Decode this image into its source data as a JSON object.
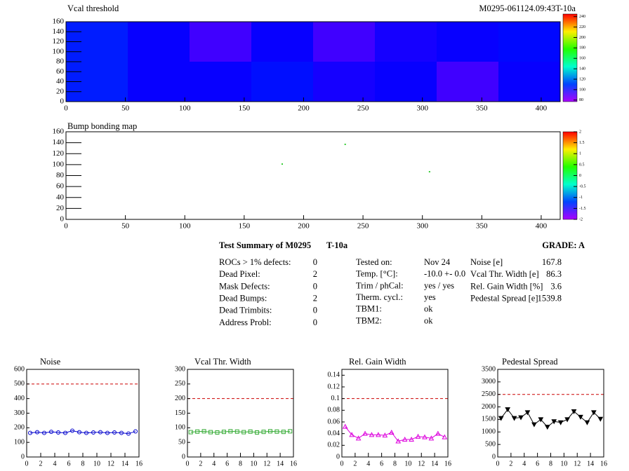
{
  "header": {
    "id": "M0295-061124.09:43T-10a"
  },
  "chart_data": [
    {
      "type": "heatmap",
      "title": "Vcal threshold",
      "xlim": [
        0,
        416
      ],
      "ylim": [
        0,
        160
      ],
      "xticks": [
        0,
        50,
        100,
        150,
        200,
        250,
        300,
        350,
        400
      ],
      "yticks": [
        0,
        20,
        40,
        60,
        80,
        100,
        120,
        140,
        160
      ],
      "z": [
        [
          105,
          100,
          100,
          103,
          98,
          100,
          92,
          100
        ],
        [
          105,
          100,
          92,
          100,
          92,
          98,
          100,
          102
        ]
      ],
      "zlim": [
        77,
        245
      ],
      "zticks": [
        80,
        100,
        120,
        140,
        160,
        180,
        200,
        220,
        240
      ]
    },
    {
      "type": "scatter",
      "title": "Bump bonding map",
      "xlim": [
        0,
        416
      ],
      "ylim": [
        0,
        160
      ],
      "xticks": [
        0,
        50,
        100,
        150,
        200,
        250,
        300,
        350,
        400
      ],
      "yticks": [
        0,
        20,
        40,
        60,
        80,
        100,
        120,
        140,
        160
      ],
      "x": [
        182,
        235,
        306
      ],
      "values": [
        101,
        137,
        87
      ],
      "color": "#33cc33",
      "zlim": [
        -2,
        2
      ],
      "zticks": [
        -2,
        {
          "value": -1.5,
          "label": "-1.5"
        },
        -1,
        {
          "value": -0.5,
          "label": "-0.5"
        },
        0,
        0.5,
        1,
        1.5,
        2
      ]
    },
    {
      "type": "line",
      "title": "Noise",
      "xlim": [
        0,
        16
      ],
      "ylim": [
        0,
        600
      ],
      "xticks": [
        0,
        2,
        4,
        6,
        8,
        10,
        12,
        14,
        16
      ],
      "yticks": [
        0,
        100,
        200,
        300,
        400,
        500,
        600
      ],
      "threshold": 500,
      "color": "#0000cc",
      "marker": "circle",
      "x": [
        0.5,
        1.5,
        2.5,
        3.5,
        4.5,
        5.5,
        6.5,
        7.5,
        8.5,
        9.5,
        10.5,
        11.5,
        12.5,
        13.5,
        14.5,
        15.5
      ],
      "values": [
        165,
        170,
        165,
        172,
        168,
        165,
        180,
        170,
        165,
        168,
        170,
        165,
        168,
        165,
        160,
        175
      ]
    },
    {
      "type": "line",
      "title": "Vcal Thr. Width",
      "xlim": [
        0,
        16
      ],
      "ylim": [
        0,
        300
      ],
      "xticks": [
        0,
        2,
        4,
        6,
        8,
        10,
        12,
        14,
        16
      ],
      "yticks": [
        0,
        50,
        100,
        150,
        200,
        250,
        300
      ],
      "threshold": 200,
      "color": "#33aa33",
      "marker": "square",
      "x": [
        0.5,
        1.5,
        2.5,
        3.5,
        4.5,
        5.5,
        6.5,
        7.5,
        8.5,
        9.5,
        10.5,
        11.5,
        12.5,
        13.5,
        14.5,
        15.5
      ],
      "values": [
        85,
        87,
        88,
        85,
        84,
        86,
        88,
        87,
        85,
        87,
        84,
        86,
        88,
        87,
        86,
        88
      ]
    },
    {
      "type": "line",
      "title": "Rel. Gain Width",
      "xlim": [
        0,
        16
      ],
      "ylim": [
        0,
        0.15
      ],
      "xticks": [
        0,
        2,
        4,
        6,
        8,
        10,
        12,
        14,
        16
      ],
      "yticks": [
        0,
        0.02,
        0.04,
        0.06,
        0.08,
        0.1,
        0.12,
        0.14
      ],
      "threshold": 0.1,
      "color": "#dd00dd",
      "marker": "triangle",
      "x": [
        0.5,
        1.5,
        2.5,
        3.5,
        4.5,
        5.5,
        6.5,
        7.5,
        8.5,
        9.5,
        10.5,
        11.5,
        12.5,
        13.5,
        14.5,
        15.5
      ],
      "values": [
        0.052,
        0.038,
        0.032,
        0.04,
        0.038,
        0.038,
        0.037,
        0.042,
        0.027,
        0.03,
        0.03,
        0.035,
        0.034,
        0.032,
        0.04,
        0.034
      ]
    },
    {
      "type": "line",
      "title": "Pedestal Spread",
      "xlim": [
        0,
        16
      ],
      "ylim": [
        0,
        3500
      ],
      "xticks": [
        0,
        2,
        4,
        6,
        8,
        10,
        12,
        14,
        16
      ],
      "yticks": [
        0,
        500,
        1000,
        1500,
        2000,
        2500,
        3000,
        3500
      ],
      "threshold": 2500,
      "color": "#000000",
      "marker": "triangle-down",
      "x": [
        0.5,
        1.5,
        2.5,
        3.5,
        4.5,
        5.5,
        6.5,
        7.5,
        8.5,
        9.5,
        10.5,
        11.5,
        12.5,
        13.5,
        14.5,
        15.5
      ],
      "values": [
        1550,
        1900,
        1550,
        1580,
        1780,
        1300,
        1500,
        1200,
        1420,
        1380,
        1500,
        1820,
        1600,
        1380,
        1780,
        1520
      ]
    }
  ],
  "summary": {
    "title": "Test Summary of M0295",
    "tag": "T-10a",
    "grade": "GRADE:  A",
    "col1": [
      [
        "ROCs > 1% defects:",
        "0"
      ],
      [
        "Dead Pixel:",
        "2"
      ],
      [
        "Mask Defects:",
        "0"
      ],
      [
        "Dead Bumps:",
        "2"
      ],
      [
        "Dead Trimbits:",
        "0"
      ],
      [
        "Address Probl:",
        "0"
      ]
    ],
    "col2": [
      [
        "Tested on:",
        "Nov 24"
      ],
      [
        "Temp. [°C]:",
        "-10.0 +- 0.0"
      ],
      [
        "Trim / phCal:",
        "yes / yes"
      ],
      [
        "Therm. cycl.:",
        "yes"
      ],
      [
        "TBM1:",
        "ok"
      ],
      [
        "TBM2:",
        "ok"
      ]
    ],
    "col3": [
      [
        "Noise [e]",
        "167.8"
      ],
      [
        "Vcal Thr. Width [e]",
        "86.3"
      ],
      [
        "Rel. Gain Width [%]",
        "3.6"
      ],
      [
        "Pedestal Spread [e]",
        "1539.8"
      ]
    ]
  }
}
